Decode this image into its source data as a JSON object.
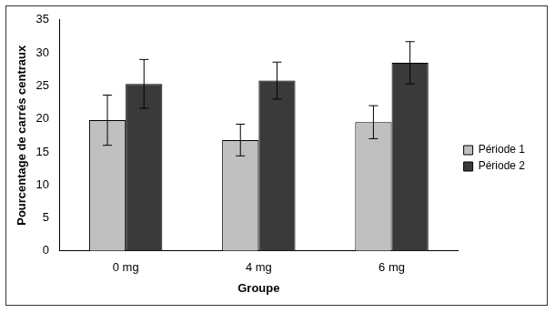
{
  "chart_data": {
    "type": "bar",
    "categories": [
      "0 mg",
      "4 mg",
      "6 mg"
    ],
    "series": [
      {
        "name": "Période 1",
        "color": "#c0c0c0",
        "values": [
          19.8,
          16.8,
          19.5
        ],
        "errors": [
          3.8,
          2.4,
          2.5
        ]
      },
      {
        "name": "Période 2",
        "color": "#3a3a3a",
        "values": [
          25.3,
          25.8,
          28.5
        ],
        "errors": [
          3.7,
          2.8,
          3.2
        ]
      }
    ],
    "x_label": "Groupe",
    "y_label": "Pourcentage de carrés centraux",
    "ylim": [
      0,
      35
    ],
    "yticks": [
      0,
      5,
      10,
      15,
      20,
      25,
      30,
      35
    ],
    "grid": false,
    "legend": "right"
  }
}
